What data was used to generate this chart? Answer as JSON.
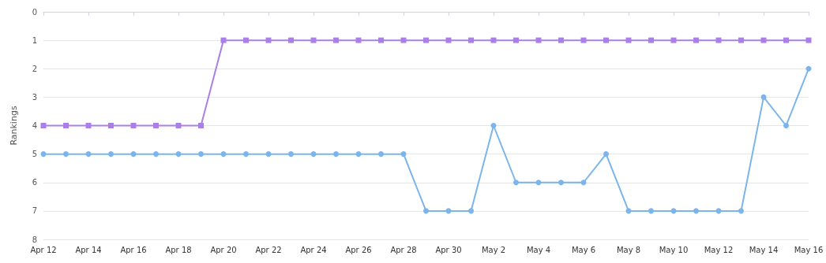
{
  "chart_data": {
    "type": "line",
    "ylabel": "Rankings",
    "categories": [
      "Apr 12",
      null,
      "Apr 14",
      null,
      "Apr 16",
      null,
      "Apr 18",
      null,
      "Apr 20",
      null,
      "Apr 22",
      null,
      "Apr 24",
      null,
      "Apr 26",
      null,
      "Apr 28",
      null,
      "Apr 30",
      null,
      "May 2",
      null,
      "May 4",
      null,
      "May 6",
      null,
      "May 8",
      null,
      "May 10",
      null,
      "May 12",
      null,
      "May 14",
      null,
      "May 16"
    ],
    "series": [
      {
        "color": "#aa80e8",
        "marker": "square",
        "values": [
          4,
          4,
          4,
          4,
          4,
          4,
          4,
          4,
          1,
          1,
          1,
          1,
          1,
          1,
          1,
          1,
          1,
          1,
          1,
          1,
          1,
          1,
          1,
          1,
          1,
          1,
          1,
          1,
          1,
          1,
          1,
          1,
          1,
          1,
          1
        ]
      },
      {
        "color": "#7cb5ec",
        "marker": "circle",
        "values": [
          5,
          5,
          5,
          5,
          5,
          5,
          5,
          5,
          5,
          5,
          5,
          5,
          5,
          5,
          5,
          5,
          5,
          7,
          7,
          7,
          4,
          6,
          6,
          6,
          6,
          5,
          7,
          7,
          7,
          7,
          7,
          7,
          3,
          4,
          2
        ]
      }
    ],
    "ylim": [
      8,
      0
    ],
    "yticks": [
      0,
      1,
      2,
      3,
      4,
      5,
      6,
      7,
      8
    ],
    "grid": "y"
  }
}
